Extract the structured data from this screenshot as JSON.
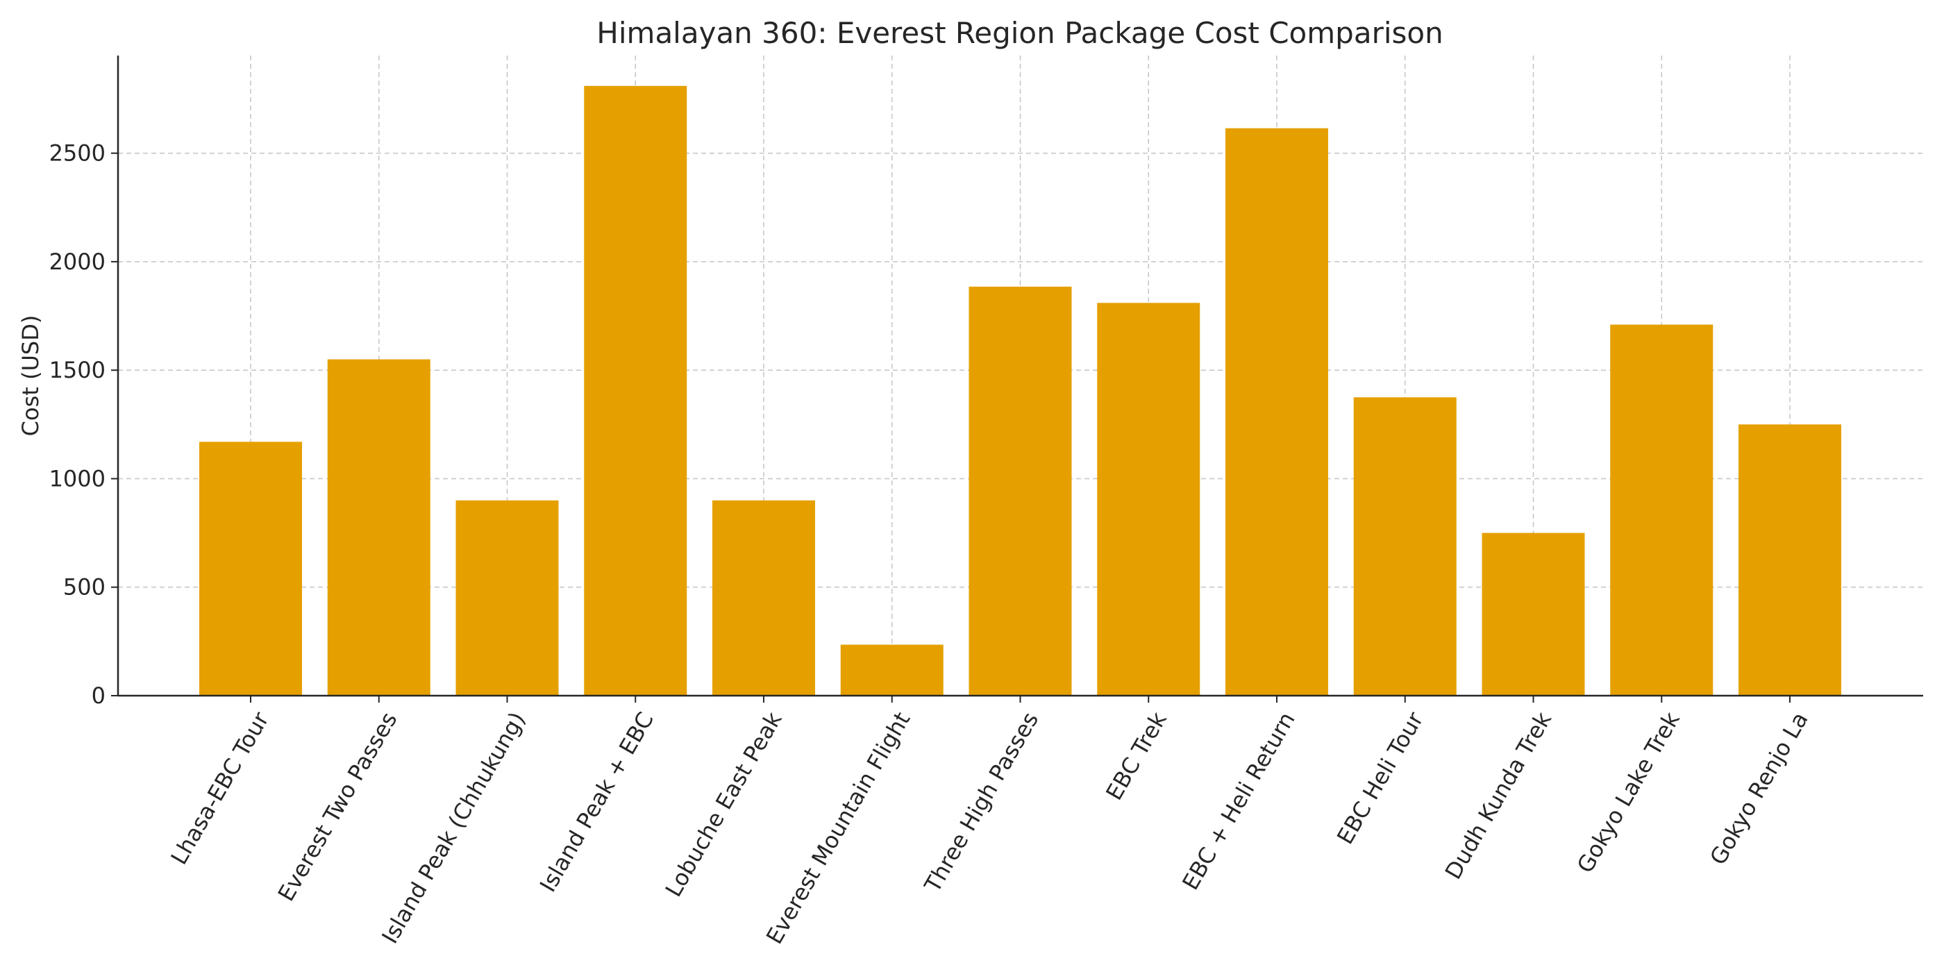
{
  "chart_data": {
    "type": "bar",
    "title": "Himalayan 360: Everest Region Package Cost Comparison",
    "xlabel": "",
    "ylabel": "Cost (USD)",
    "categories": [
      "Lhasa-EBC Tour",
      "Everest Two Passes",
      "Island Peak (Chhukung)",
      "Island Peak + EBC",
      "Lobuche East Peak",
      "Everest Mountain Flight",
      "Three High Passes",
      "EBC Trek",
      "EBC + Heli Return",
      "EBC Heli Tour",
      "Dudh Kunda Trek",
      "Gokyo Lake Trek",
      "Gokyo Renjo La"
    ],
    "values": [
      1170,
      1550,
      900,
      2810,
      900,
      235,
      1885,
      1810,
      2615,
      1375,
      750,
      1710,
      1250
    ],
    "ylim": [
      0,
      2950
    ],
    "yticks": [
      0,
      500,
      1000,
      1500,
      2000,
      2500
    ],
    "grid": true,
    "bar_color": "#e5a000"
  }
}
